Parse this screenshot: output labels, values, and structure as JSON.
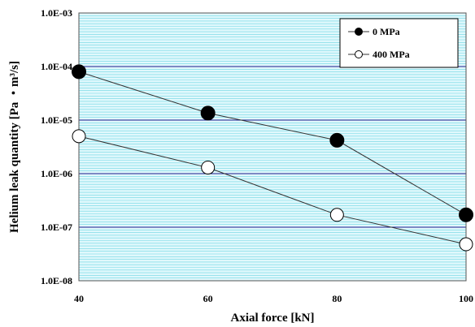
{
  "chart_data": {
    "type": "line",
    "xlabel": "Axial force [kN]",
    "ylabel": "Helium leak quantity [Pa ・m³/s]",
    "x": [
      40,
      60,
      80,
      100
    ],
    "xlim": [
      40,
      100
    ],
    "x_ticks": [
      "40",
      "60",
      "80",
      "100"
    ],
    "y_scale": "log",
    "ylim": [
      1e-08,
      0.001
    ],
    "y_ticks": [
      "1.0E-03",
      "1.0E-04",
      "1.0E-05",
      "1.0E-06",
      "1.0E-07",
      "1.0E-08"
    ],
    "grid": true,
    "legend_position": "top-right",
    "series": [
      {
        "name": "0 MPa",
        "values": [
          8e-05,
          1.35e-05,
          4.2e-06,
          1.7e-07
        ],
        "marker": "filled-circle",
        "color": "#000000"
      },
      {
        "name": "400 MPa",
        "values": [
          5e-06,
          1.3e-06,
          1.7e-07,
          4.8e-08
        ],
        "marker": "open-circle",
        "color": "#000000"
      }
    ],
    "colors": {
      "background": "#e0f8fc",
      "minor_grid": "#6cd6e3",
      "major_grid": "#1a1a8c"
    }
  }
}
